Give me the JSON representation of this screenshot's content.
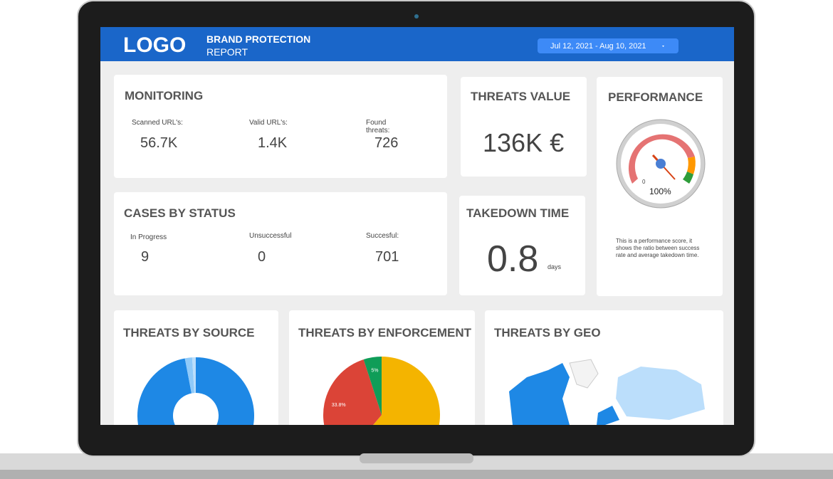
{
  "header": {
    "logo": "LOGO",
    "title": "BRAND PROTECTION",
    "subtitle": "REPORT",
    "date_range": "Jul 12, 2021 - Aug 10, 2021"
  },
  "monitoring": {
    "title": "MONITORING",
    "metrics": [
      {
        "label": "Scanned URL's:",
        "value": "56.7K"
      },
      {
        "label": "Valid URL's:",
        "value": "1.4K"
      },
      {
        "label": "Found threats:",
        "value": 726
      }
    ]
  },
  "threats_value": {
    "title": "THREATS VALUE",
    "value": "136K €"
  },
  "performance": {
    "title": "PERFORMANCE",
    "gauge_min": 0,
    "gauge_value": "100%",
    "description": "This is a performance score, it shows the ratio between success rate and average takedown time."
  },
  "cases_by_status": {
    "title": "CASES BY STATUS",
    "metrics": [
      {
        "label": "In Progress",
        "value": 9
      },
      {
        "label": "Unsuccessful",
        "value": 0
      },
      {
        "label": "Succesful:",
        "value": 701
      }
    ]
  },
  "takedown_time": {
    "title": "TAKEDOWN TIME",
    "value": 0.8,
    "unit": "days"
  },
  "threats_by_source": {
    "title": "THREATS BY SOURCE",
    "values": [
      97,
      2,
      1
    ],
    "colors": [
      "#1e88e5",
      "#90caf9",
      "#bbdefb"
    ]
  },
  "threats_by_enforcement": {
    "title": "THREATS BY ENFORCEMENT",
    "values": [
      61.2,
      33.8,
      5
    ],
    "value_labels": [
      null,
      "33.8%",
      "5%"
    ],
    "colors": [
      "#f4b400",
      "#db4437",
      "#0f9d58"
    ]
  },
  "threats_by_geo": {
    "title": "THREATS BY GEO"
  }
}
